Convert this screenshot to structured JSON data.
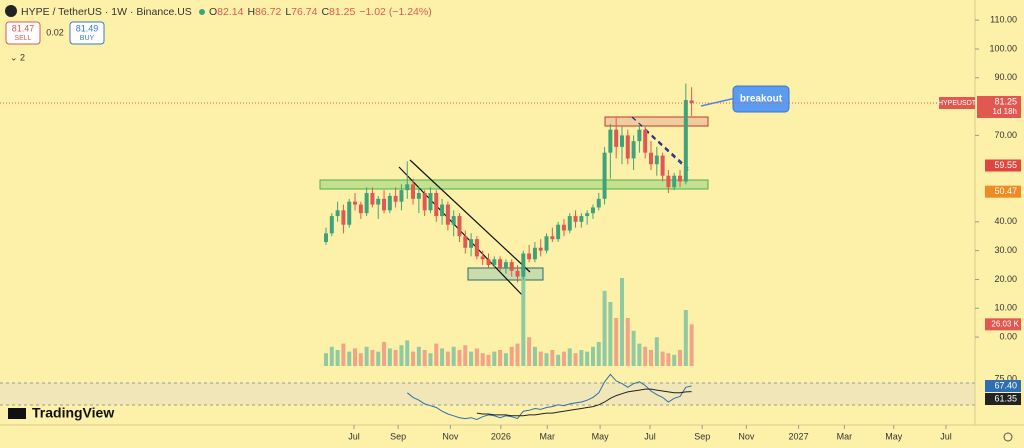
{
  "header": {
    "symbol": "HYPE / TetherUS · 1W · Binance.US",
    "ohlc_letters": [
      "O",
      "H",
      "L",
      "C"
    ],
    "change": "−1.02 (−1.24%)"
  },
  "trade": {
    "sell_price": "81.47",
    "sell": "SELL",
    "spread": "0.02",
    "buy_price": "81.49",
    "buy": "BUY"
  },
  "indicators_count": "2",
  "logo": "TradingView",
  "annotation": "breakout",
  "symbol_tag": "HYPEUSDT",
  "countdown": "1d 18h",
  "chart_data": {
    "type": "candlestick",
    "up_color": "#3ea37a",
    "down_color": "#e0584f",
    "volume_up_color": "#8fcaa2",
    "volume_down_color": "#f2a486",
    "xlim": [
      -56,
      112
    ],
    "xticks": [
      {
        "value": 5,
        "label": "Jul"
      },
      {
        "value": 12.6,
        "label": "Sep"
      },
      {
        "value": 21.6,
        "label": "Nov"
      },
      {
        "value": 30.3,
        "label": "2026"
      },
      {
        "value": 38.3,
        "label": "Mar"
      },
      {
        "value": 47.4,
        "label": "May"
      },
      {
        "value": 56,
        "label": "Jul"
      },
      {
        "value": 65,
        "label": "Sep"
      },
      {
        "value": 72.6,
        "label": "Nov"
      },
      {
        "value": 81.6,
        "label": "2027"
      },
      {
        "value": 89.5,
        "label": "Mar"
      },
      {
        "value": 98,
        "label": "May"
      },
      {
        "value": 107,
        "label": "Jul"
      }
    ],
    "ylim": [
      -14.9,
      117
    ],
    "yticks": [
      {
        "value": 110,
        "label": "110.00"
      },
      {
        "value": 100,
        "label": "100.00"
      },
      {
        "value": 90,
        "label": "90.00"
      },
      {
        "value": 70,
        "label": "70.00"
      },
      {
        "value": 40,
        "label": "40.00"
      },
      {
        "value": 30,
        "label": "30.00"
      },
      {
        "value": 20,
        "label": "20.00"
      },
      {
        "value": 10,
        "label": "10.00"
      },
      {
        "value": 0,
        "label": "0.00"
      }
    ],
    "open": [
      33,
      36,
      42,
      44,
      39,
      47,
      46,
      43,
      50,
      46,
      48,
      44,
      49,
      47,
      51,
      53,
      48,
      50,
      44,
      50,
      42,
      46,
      39,
      42,
      35,
      31,
      34,
      28,
      27,
      25,
      27,
      24,
      26,
      23,
      21,
      29,
      27,
      31,
      30,
      35,
      34,
      39,
      37,
      42,
      40,
      42,
      43,
      45,
      48,
      64,
      72,
      66,
      70,
      62,
      68,
      72,
      64,
      60,
      63,
      56,
      52,
      56,
      54,
      82.14
    ],
    "high": [
      38,
      43,
      47,
      46,
      48,
      50,
      47,
      52,
      52,
      49,
      51,
      50,
      52,
      53,
      61,
      55,
      52,
      51,
      52,
      51,
      48,
      47,
      44,
      43,
      37,
      36,
      35,
      30,
      29,
      28,
      28,
      27,
      27,
      25,
      30,
      32,
      33,
      34,
      36,
      38,
      40,
      41,
      43,
      44,
      43,
      44,
      46,
      50,
      66,
      74,
      76,
      73,
      72,
      70,
      74,
      73,
      68,
      66,
      64,
      58,
      57,
      58,
      88,
      86.72
    ],
    "low": [
      32,
      35,
      40,
      36,
      38,
      44,
      41,
      42,
      45,
      41,
      43,
      43,
      45,
      44,
      48,
      46,
      43,
      42,
      43,
      40,
      39,
      37,
      35,
      33,
      29,
      28,
      27,
      25,
      24,
      24,
      23,
      22,
      21,
      19,
      20,
      26,
      26,
      28,
      29,
      33,
      33,
      35,
      36,
      38,
      38,
      39,
      41,
      44,
      46,
      55,
      62,
      60,
      60,
      58,
      64,
      62,
      58,
      56,
      54,
      50,
      51,
      52,
      53,
      76.74
    ],
    "close": [
      36,
      42,
      44,
      39,
      47,
      46,
      43,
      50,
      46,
      48,
      44,
      49,
      47,
      51,
      53,
      48,
      50,
      44,
      50,
      42,
      46,
      39,
      42,
      35,
      31,
      34,
      28,
      27,
      25,
      27,
      24,
      26,
      23,
      21,
      29,
      27,
      31,
      30,
      35,
      34,
      39,
      37,
      42,
      40,
      42,
      43,
      45,
      48,
      64,
      72,
      66,
      70,
      62,
      68,
      72,
      64,
      60,
      63,
      56,
      52,
      56,
      54,
      82.27,
      81.25
    ],
    "volume_lim": [
      0,
      100
    ],
    "volume": [
      8,
      12,
      10,
      14,
      9,
      11,
      8,
      12,
      10,
      9,
      15,
      11,
      10,
      13,
      16,
      9,
      12,
      10,
      8,
      14,
      11,
      9,
      12,
      10,
      13,
      9,
      11,
      8,
      7,
      9,
      10,
      8,
      12,
      14,
      60,
      18,
      12,
      9,
      8,
      10,
      7,
      9,
      11,
      8,
      10,
      9,
      12,
      15,
      47,
      40,
      30,
      55,
      30,
      22,
      14,
      12,
      10,
      18,
      9,
      8,
      7,
      10,
      35,
      26.03
    ],
    "volume_value_labels": [
      null,
      null,
      null,
      null,
      null,
      null,
      null,
      null,
      null,
      null,
      null,
      null,
      null,
      null,
      null,
      null,
      null,
      null,
      null,
      null,
      null,
      null,
      null,
      null,
      null,
      null,
      null,
      null,
      null,
      null,
      null,
      null,
      null,
      null,
      null,
      null,
      null,
      null,
      null,
      null,
      null,
      null,
      null,
      null,
      null,
      null,
      null,
      null,
      null,
      null,
      null,
      null,
      null,
      null,
      null,
      null,
      null,
      null,
      null,
      null,
      null,
      null,
      null,
      "26.03 K"
    ],
    "moving_averages": [
      {
        "value": 59.55,
        "color": "#e0453f"
      },
      {
        "value": 50.47,
        "color": "#f08a24"
      }
    ],
    "rsi_lim": [
      19.6,
      84.8
    ],
    "rsi_yticks": [
      {
        "value": 75,
        "label": "75.00"
      }
    ],
    "rsi": {
      "color": "#2f6fb0",
      "values": [
        null,
        null,
        null,
        null,
        null,
        null,
        null,
        null,
        null,
        null,
        null,
        null,
        null,
        null,
        60,
        55,
        52,
        48,
        46,
        44,
        40,
        37,
        35,
        33,
        32,
        33,
        31,
        34,
        36,
        35,
        33,
        35,
        34,
        32,
        40,
        41,
        43,
        42,
        44,
        45,
        47,
        46,
        48,
        49,
        50,
        52,
        55,
        60,
        72,
        80,
        73,
        70,
        66,
        70,
        72,
        68,
        62,
        58,
        55,
        50,
        54,
        56,
        66,
        67.4
      ],
      "value_labels": [
        null,
        null,
        null,
        null,
        null,
        null,
        null,
        null,
        null,
        null,
        null,
        null,
        null,
        null,
        null,
        null,
        null,
        null,
        null,
        null,
        null,
        null,
        null,
        null,
        null,
        null,
        null,
        null,
        null,
        null,
        null,
        null,
        null,
        null,
        null,
        null,
        null,
        null,
        null,
        null,
        null,
        null,
        null,
        null,
        null,
        null,
        null,
        null,
        null,
        null,
        null,
        null,
        null,
        null,
        null,
        null,
        null,
        null,
        null,
        null,
        null,
        null,
        null,
        "67.40"
      ]
    },
    "rsi_ma": {
      "color": "#222222",
      "values": [
        null,
        null,
        null,
        null,
        null,
        null,
        null,
        null,
        null,
        null,
        null,
        null,
        null,
        null,
        null,
        null,
        null,
        null,
        null,
        null,
        null,
        null,
        null,
        null,
        null,
        null,
        38,
        37,
        37,
        36,
        36,
        36,
        35,
        35,
        35,
        36,
        36,
        37,
        38,
        38,
        39,
        40,
        41,
        42,
        43,
        44,
        45,
        47,
        50,
        54,
        57,
        59,
        61,
        62,
        63,
        64,
        64,
        63,
        62,
        61,
        60,
        60,
        61,
        61.35
      ]
    }
  }
}
